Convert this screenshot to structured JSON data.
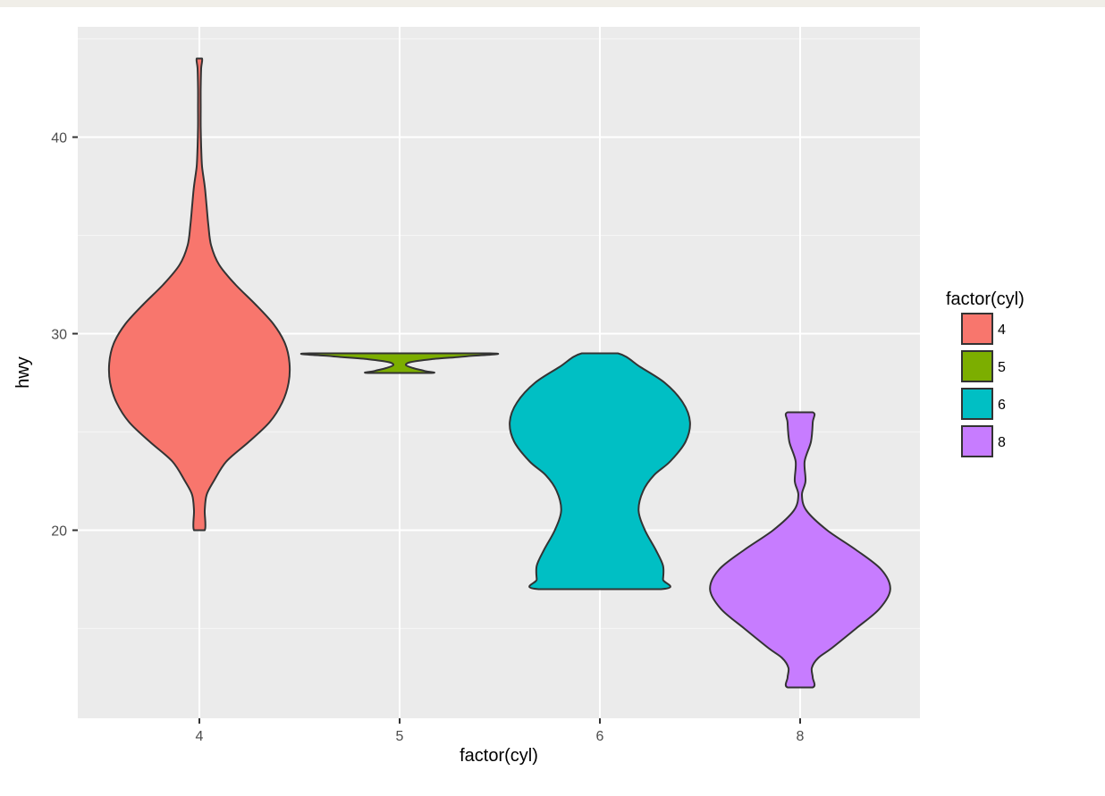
{
  "chart_data": {
    "type": "violin",
    "xlabel": "factor(cyl)",
    "ylabel": "hwy",
    "ylim": [
      10.8,
      45.2
    ],
    "yticks": [
      20,
      30,
      40
    ],
    "categories": [
      "4",
      "5",
      "6",
      "8"
    ],
    "grid": true,
    "legend": {
      "title": "factor(cyl)",
      "placement": "right",
      "items": [
        {
          "label": "4",
          "color": "#F8766D"
        },
        {
          "label": "5",
          "color": "#7CAE00"
        },
        {
          "label": "6",
          "color": "#00BFC4"
        },
        {
          "label": "8",
          "color": "#C77CFF"
        }
      ]
    },
    "series": [
      {
        "category": "4",
        "color": "#F8766D",
        "y_range": [
          20,
          44
        ],
        "density": [
          [
            20,
            0.06
          ],
          [
            21,
            0.06
          ],
          [
            21.8,
            0.08
          ],
          [
            22.5,
            0.16
          ],
          [
            23.5,
            0.3
          ],
          [
            24.5,
            0.55
          ],
          [
            25.5,
            0.78
          ],
          [
            26.5,
            0.92
          ],
          [
            27.5,
            0.99
          ],
          [
            28.5,
            1.0
          ],
          [
            29.5,
            0.95
          ],
          [
            30.5,
            0.82
          ],
          [
            31.5,
            0.62
          ],
          [
            32.5,
            0.4
          ],
          [
            33.5,
            0.22
          ],
          [
            34.5,
            0.13
          ],
          [
            35.5,
            0.1
          ],
          [
            36.5,
            0.08
          ],
          [
            37.5,
            0.06
          ],
          [
            38.5,
            0.03
          ],
          [
            39.5,
            0.02
          ],
          [
            40.5,
            0.015
          ],
          [
            41.5,
            0.015
          ],
          [
            42.5,
            0.015
          ],
          [
            43.5,
            0.02
          ],
          [
            44,
            0.03
          ]
        ]
      },
      {
        "category": "5",
        "color": "#7CAE00",
        "y_range": [
          28,
          29
        ],
        "density": [
          [
            28,
            0.35
          ],
          [
            28.1,
            0.28
          ],
          [
            28.25,
            0.15
          ],
          [
            28.4,
            0.07
          ],
          [
            28.55,
            0.12
          ],
          [
            28.7,
            0.35
          ],
          [
            28.85,
            0.75
          ],
          [
            29,
            1.0
          ]
        ]
      },
      {
        "category": "6",
        "color": "#00BFC4",
        "y_range": [
          17,
          29
        ],
        "density": [
          [
            17,
            0.68
          ],
          [
            17.5,
            0.7
          ],
          [
            18.2,
            0.7
          ],
          [
            19,
            0.62
          ],
          [
            20,
            0.5
          ],
          [
            21,
            0.43
          ],
          [
            22,
            0.48
          ],
          [
            22.8,
            0.6
          ],
          [
            23.5,
            0.78
          ],
          [
            24.5,
            0.95
          ],
          [
            25.5,
            1.0
          ],
          [
            26.5,
            0.92
          ],
          [
            27.5,
            0.72
          ],
          [
            28.3,
            0.45
          ],
          [
            29,
            0.2
          ]
        ]
      },
      {
        "category": "8",
        "color": "#C77CFF",
        "y_range": [
          12,
          26
        ],
        "density": [
          [
            12,
            0.14
          ],
          [
            12.5,
            0.14
          ],
          [
            13,
            0.13
          ],
          [
            13.5,
            0.2
          ],
          [
            14,
            0.35
          ],
          [
            15,
            0.62
          ],
          [
            16,
            0.88
          ],
          [
            17,
            1.0
          ],
          [
            18,
            0.9
          ],
          [
            19,
            0.62
          ],
          [
            20,
            0.3
          ],
          [
            21,
            0.07
          ],
          [
            21.8,
            0.02
          ],
          [
            22.5,
            0.06
          ],
          [
            23.5,
            0.05
          ],
          [
            24.5,
            0.12
          ],
          [
            25.5,
            0.14
          ],
          [
            26,
            0.14
          ]
        ]
      }
    ]
  }
}
